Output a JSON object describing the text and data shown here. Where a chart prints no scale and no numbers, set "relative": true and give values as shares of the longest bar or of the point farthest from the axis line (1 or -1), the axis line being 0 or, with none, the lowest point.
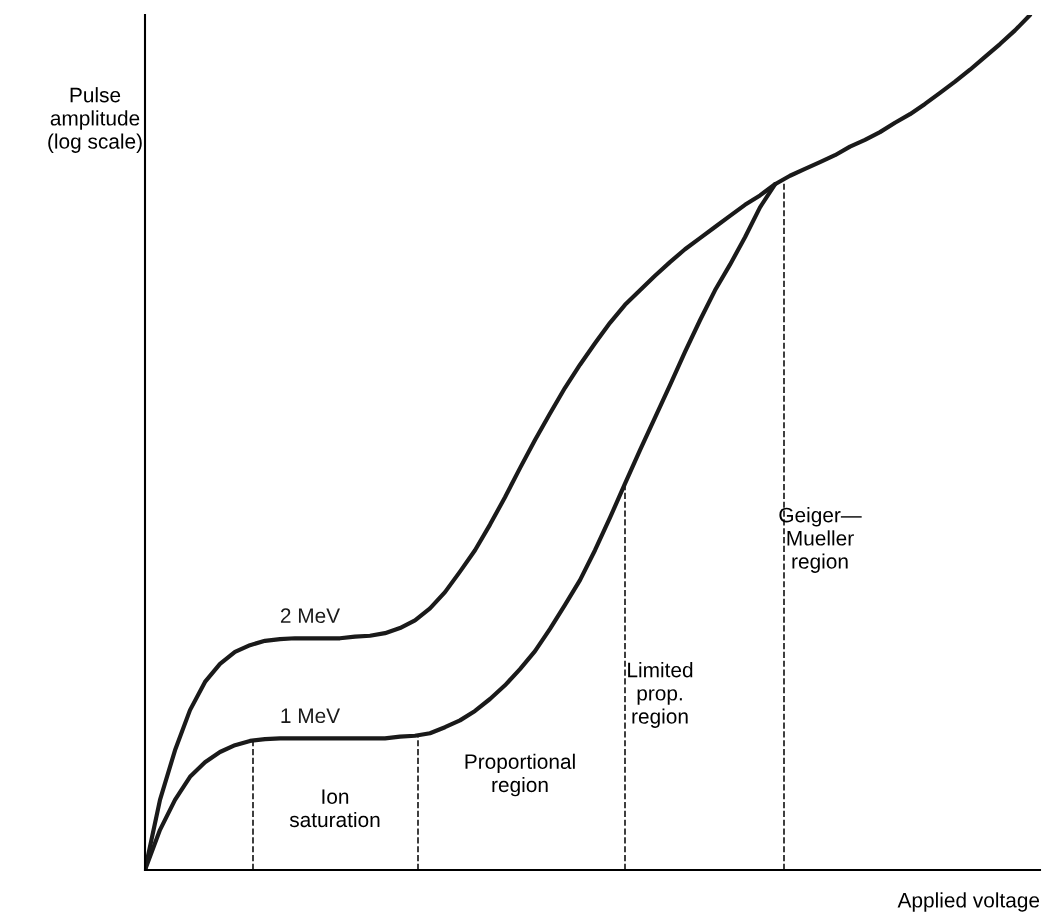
{
  "chart_data": {
    "type": "line",
    "relative": true,
    "xlabel": "Applied voltage",
    "ylabel": "Pulse\namplitude\n(log scale)",
    "categories": [
      null,
      null,
      null,
      null,
      null,
      null,
      null,
      null,
      null,
      null,
      null,
      null,
      null,
      null,
      null,
      null,
      null,
      null,
      null,
      null,
      null,
      null,
      null,
      null,
      null,
      null,
      null,
      null,
      null,
      null,
      null,
      null,
      null,
      null,
      null,
      null,
      null,
      null,
      null,
      null,
      null,
      null,
      null,
      null,
      null,
      null,
      null,
      null,
      null,
      null,
      null,
      null,
      null,
      null,
      null,
      null,
      null,
      null,
      null,
      null
    ],
    "series": [
      {
        "name": "2 MeV",
        "color": "#1a1a1a",
        "values": [
          0,
          0.082,
          0.14,
          0.187,
          0.22,
          0.241,
          0.255,
          0.263,
          0.268,
          0.27,
          0.271,
          0.271,
          0.271,
          0.271,
          0.273,
          0.274,
          0.277,
          0.283,
          0.292,
          0.306,
          0.325,
          0.349,
          0.374,
          0.404,
          0.436,
          0.47,
          0.503,
          0.534,
          0.564,
          0.591,
          0.616,
          0.64,
          0.661,
          0.678,
          0.695,
          0.711,
          0.726,
          0.739,
          0.752,
          0.765,
          0.778,
          0.789,
          0.802,
          0.812,
          0.82,
          0.828,
          0.836,
          0.846,
          0.854,
          0.863,
          0.874,
          0.884,
          0.896,
          0.909,
          0.922,
          0.936,
          0.951,
          0.966,
          0.982,
          1
        ]
      },
      {
        "name": "1 MeV",
        "color": "#1a1a1a",
        "values": [
          0,
          0.047,
          0.082,
          0.109,
          0.126,
          0.138,
          0.146,
          0.151,
          0.153,
          0.154,
          0.154,
          0.154,
          0.154,
          0.154,
          0.154,
          0.154,
          0.154,
          0.156,
          0.157,
          0.16,
          0.167,
          0.175,
          0.186,
          0.2,
          0.216,
          0.235,
          0.256,
          0.282,
          0.31,
          0.339,
          0.374,
          0.412,
          0.452,
          0.491,
          0.529,
          0.567,
          0.606,
          0.643,
          0.678,
          0.708,
          0.74,
          0.775,
          0.802,
          null,
          null,
          null,
          null,
          null,
          null,
          null,
          null,
          null,
          null,
          null,
          null,
          null,
          null,
          null,
          null,
          null
        ]
      }
    ],
    "annotations": [
      "Ion\nsaturation",
      "Proportional\nregion",
      "Limited\nprop.\nregion",
      "Geiger—\nMueller\nregion"
    ],
    "marker": "none",
    "line_style": "solid",
    "legend": false
  }
}
